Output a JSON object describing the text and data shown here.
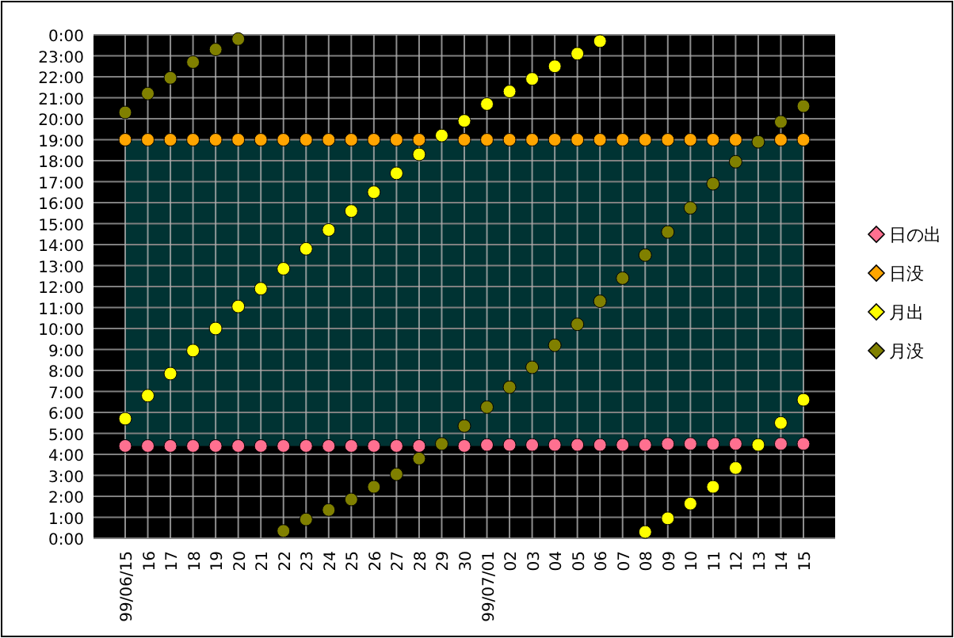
{
  "chart_data": {
    "type": "scatter",
    "categories": [
      "99/06/15",
      "16",
      "17",
      "18",
      "19",
      "20",
      "21",
      "22",
      "23",
      "24",
      "25",
      "26",
      "27",
      "28",
      "29",
      "30",
      "99/07/01",
      "02",
      "03",
      "04",
      "05",
      "06",
      "07",
      "08",
      "09",
      "10",
      "11",
      "12",
      "13",
      "14",
      "15"
    ],
    "series": [
      {
        "name": "日の出",
        "color": "#ff7090",
        "values": [
          4.4,
          4.4,
          4.4,
          4.4,
          4.4,
          4.4,
          4.4,
          4.4,
          4.4,
          4.4,
          4.4,
          4.4,
          4.4,
          4.4,
          null,
          4.4,
          4.45,
          4.45,
          4.45,
          4.45,
          4.45,
          4.45,
          4.45,
          4.45,
          4.5,
          4.5,
          4.5,
          4.5,
          null,
          4.5,
          4.5
        ]
      },
      {
        "name": "日没",
        "color": "#ffa500",
        "values": [
          19,
          19,
          19,
          19,
          19,
          19,
          19,
          19,
          19,
          19,
          19,
          19,
          19,
          19,
          null,
          19,
          19,
          19,
          19,
          19,
          19,
          19,
          19,
          19,
          19,
          19,
          19,
          19,
          null,
          19,
          19
        ]
      },
      {
        "name": "月出",
        "color": "#ffff00",
        "values": [
          5.7,
          6.8,
          7.85,
          8.95,
          10.0,
          11.05,
          11.9,
          12.85,
          13.8,
          14.7,
          15.6,
          16.5,
          17.4,
          18.3,
          19.2,
          19.9,
          20.7,
          21.3,
          21.9,
          22.5,
          23.1,
          23.7,
          null,
          0.3,
          0.95,
          1.65,
          2.45,
          3.35,
          4.45,
          5.5,
          6.6
        ]
      },
      {
        "name": "月没",
        "color": "#808000",
        "values": [
          20.3,
          21.2,
          21.95,
          22.7,
          23.3,
          23.8,
          null,
          0.35,
          0.9,
          1.35,
          1.85,
          2.45,
          3.05,
          3.8,
          4.5,
          5.35,
          6.25,
          7.2,
          8.15,
          9.2,
          10.2,
          11.3,
          12.4,
          13.5,
          14.6,
          15.75,
          16.9,
          17.95,
          18.9,
          19.85,
          20.6
        ]
      }
    ],
    "ylim": [
      0,
      24
    ],
    "yticks": [
      {
        "value": 0,
        "label": "0:00"
      },
      {
        "value": 1,
        "label": "1:00"
      },
      {
        "value": 2,
        "label": "2:00"
      },
      {
        "value": 3,
        "label": "3:00"
      },
      {
        "value": 4,
        "label": "4:00"
      },
      {
        "value": 5,
        "label": "5:00"
      },
      {
        "value": 6,
        "label": "6:00"
      },
      {
        "value": 7,
        "label": "7:00"
      },
      {
        "value": 8,
        "label": "8:00"
      },
      {
        "value": 9,
        "label": "9:00"
      },
      {
        "value": 10,
        "label": "10:00"
      },
      {
        "value": 11,
        "label": "11:00"
      },
      {
        "value": 12,
        "label": "12:00"
      },
      {
        "value": 13,
        "label": "13:00"
      },
      {
        "value": 14,
        "label": "14:00"
      },
      {
        "value": 15,
        "label": "15:00"
      },
      {
        "value": 16,
        "label": "16:00"
      },
      {
        "value": 17,
        "label": "17:00"
      },
      {
        "value": 18,
        "label": "18:00"
      },
      {
        "value": 19,
        "label": "19:00"
      },
      {
        "value": 20,
        "label": "20:00"
      },
      {
        "value": 21,
        "label": "21:00"
      },
      {
        "value": 22,
        "label": "22:00"
      },
      {
        "value": 23,
        "label": "23:00"
      },
      {
        "value": 24,
        "label": "0:00"
      }
    ],
    "bands": [
      {
        "axis": "y",
        "from": 4.4,
        "to": 19,
        "color": "#003333"
      }
    ],
    "grid": true,
    "legend": "right",
    "marker": "circle"
  }
}
